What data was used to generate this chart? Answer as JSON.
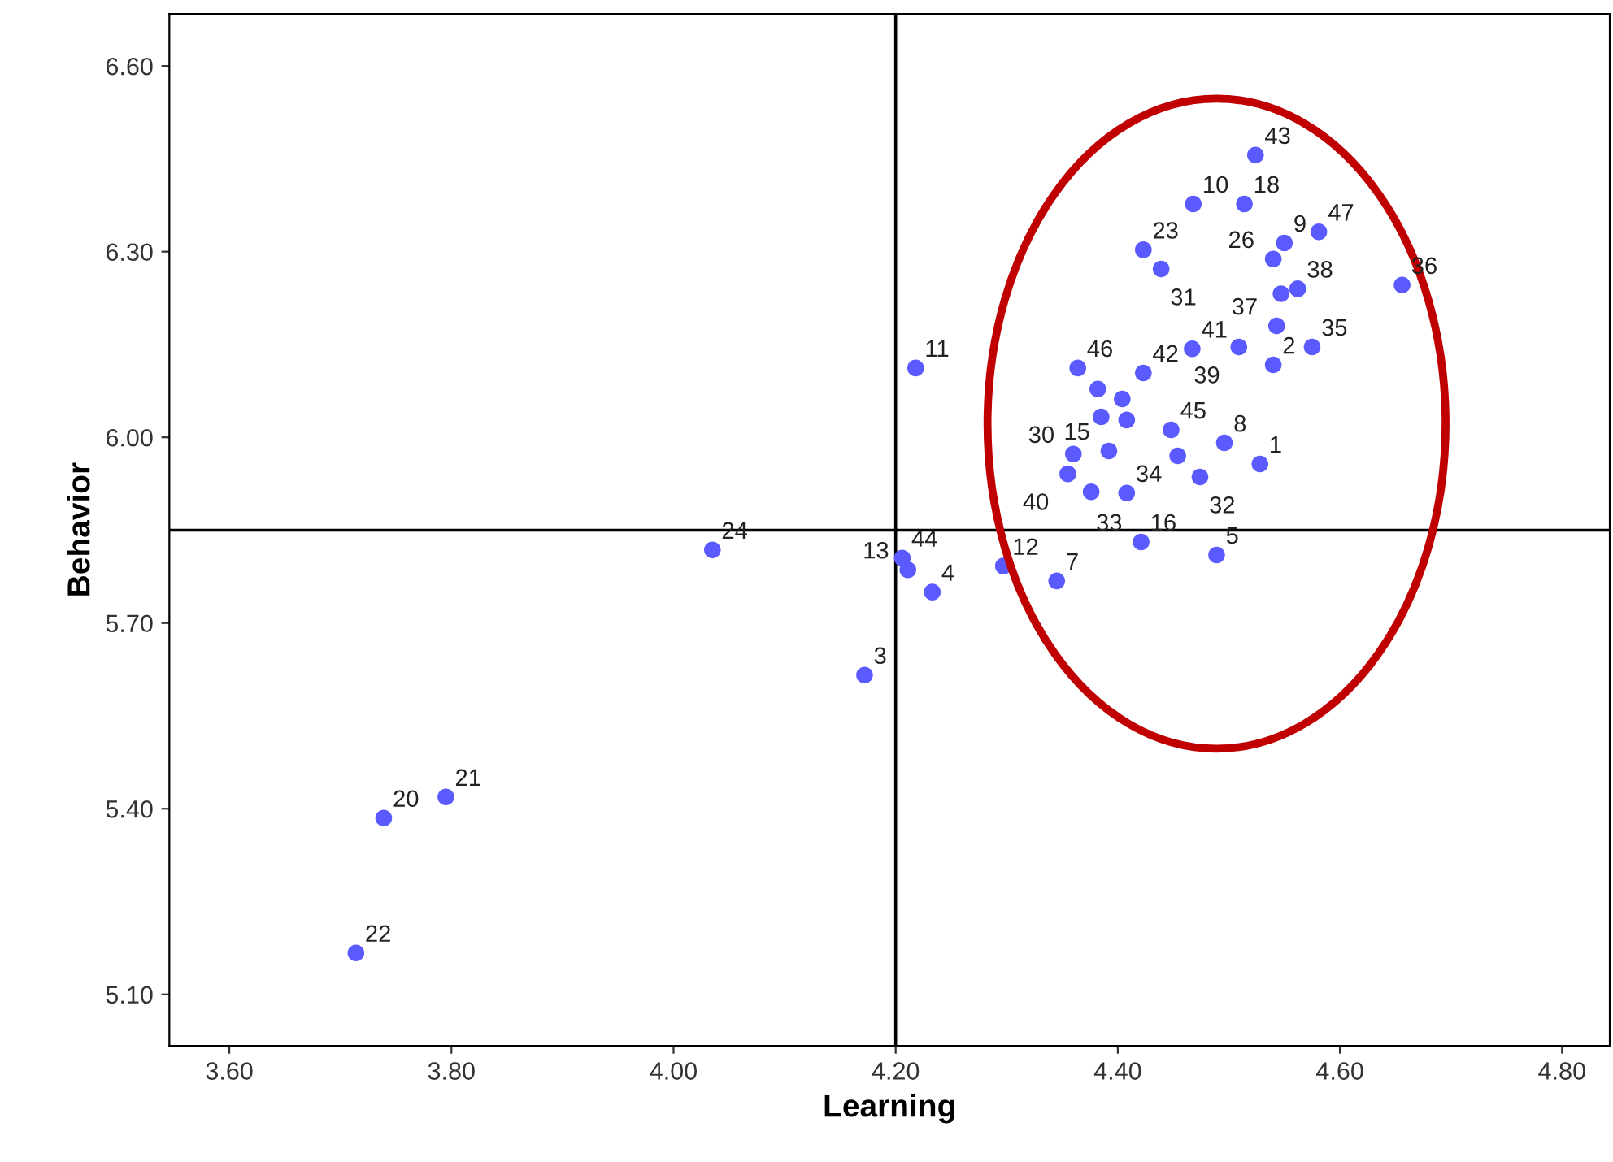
{
  "chart_data": {
    "type": "scatter",
    "xlabel": "Learning",
    "ylabel": "Behavior",
    "xlim": [
      3.546,
      4.843
    ],
    "ylim": [
      5.017,
      6.684
    ],
    "xticks": [
      {
        "value": 3.6,
        "label": "3.60"
      },
      {
        "value": 3.8,
        "label": "3.80"
      },
      {
        "value": 4.0,
        "label": "4.00"
      },
      {
        "value": 4.2,
        "label": "4.20"
      },
      {
        "value": 4.4,
        "label": "4.40"
      },
      {
        "value": 4.6,
        "label": "4.60"
      },
      {
        "value": 4.8,
        "label": "4.80"
      }
    ],
    "yticks": [
      {
        "value": 5.1,
        "label": "5.10"
      },
      {
        "value": 5.4,
        "label": "5.40"
      },
      {
        "value": 5.7,
        "label": "5.70"
      },
      {
        "value": 6.0,
        "label": "6.00"
      },
      {
        "value": 6.3,
        "label": "6.30"
      },
      {
        "value": 6.6,
        "label": "6.60"
      }
    ],
    "grid": false,
    "marker": "circle",
    "ref_lines": [
      {
        "axis": "x",
        "value": 4.2,
        "color": "#000000"
      },
      {
        "axis": "y",
        "value": 5.85,
        "color": "#000000"
      }
    ],
    "series": [
      {
        "color": "#5a5aff",
        "x": [
          4.524,
          4.468,
          4.514,
          4.55,
          4.581,
          4.423,
          4.439,
          4.54,
          4.562,
          4.547,
          4.656,
          4.467,
          4.509,
          4.543,
          4.575,
          4.54,
          4.364,
          4.382,
          4.404,
          4.423,
          4.385,
          4.408,
          4.448,
          4.496,
          4.528,
          4.392,
          4.454,
          4.36,
          4.355,
          4.376,
          4.408,
          4.474,
          4.421,
          4.489,
          4.297,
          4.345,
          4.218,
          4.035,
          4.206,
          4.211,
          4.233,
          4.172,
          3.795,
          3.739,
          3.714
        ],
        "values": [
          6.456,
          6.377,
          6.377,
          6.314,
          6.332,
          6.303,
          6.272,
          6.288,
          6.24,
          6.232,
          6.246,
          6.143,
          6.146,
          6.18,
          6.146,
          6.117,
          6.112,
          6.078,
          6.062,
          6.104,
          6.033,
          6.028,
          6.012,
          5.991,
          5.957,
          5.978,
          5.97,
          5.973,
          5.941,
          5.912,
          5.91,
          5.936,
          5.831,
          5.81,
          5.792,
          5.768,
          6.112,
          5.818,
          5.805,
          5.786,
          5.75,
          5.616,
          5.419,
          5.385,
          5.167
        ]
      }
    ],
    "annotations": [
      {
        "text": "43",
        "x": 4.524,
        "y": 6.456
      },
      {
        "text": "10",
        "x": 4.468,
        "y": 6.377
      },
      {
        "text": "18",
        "x": 4.514,
        "y": 6.377
      },
      {
        "text": "9",
        "x": 4.55,
        "y": 6.314
      },
      {
        "text": "47",
        "x": 4.581,
        "y": 6.332
      },
      {
        "text": "23",
        "x": 4.423,
        "y": 6.303
      },
      {
        "text": "31",
        "x": 4.439,
        "y": 6.272
      },
      {
        "text": "26",
        "x": 4.54,
        "y": 6.288
      },
      {
        "text": "38",
        "x": 4.562,
        "y": 6.24
      },
      {
        "text": "36",
        "x": 4.656,
        "y": 6.246
      },
      {
        "text": "41",
        "x": 4.467,
        "y": 6.143
      },
      {
        "text": "39",
        "x": 4.509,
        "y": 6.146
      },
      {
        "text": "37",
        "x": 4.543,
        "y": 6.18
      },
      {
        "text": "35",
        "x": 4.575,
        "y": 6.146
      },
      {
        "text": "2",
        "x": 4.54,
        "y": 6.117
      },
      {
        "text": "46",
        "x": 4.364,
        "y": 6.112
      },
      {
        "text": "42",
        "x": 4.423,
        "y": 6.104
      },
      {
        "text": "45",
        "x": 4.448,
        "y": 6.012
      },
      {
        "text": "8",
        "x": 4.496,
        "y": 5.991
      },
      {
        "text": "1",
        "x": 4.528,
        "y": 5.957
      },
      {
        "text": "15",
        "x": 4.392,
        "y": 5.978
      },
      {
        "text": "30",
        "x": 4.36,
        "y": 5.973
      },
      {
        "text": "40",
        "x": 4.355,
        "y": 5.941
      },
      {
        "text": "34",
        "x": 4.408,
        "y": 5.91
      },
      {
        "text": "32",
        "x": 4.474,
        "y": 5.936
      },
      {
        "text": "16",
        "x": 4.421,
        "y": 5.831
      },
      {
        "text": "33",
        "x": 4.421,
        "y": 5.831
      },
      {
        "text": "5",
        "x": 4.489,
        "y": 5.81
      },
      {
        "text": "12",
        "x": 4.297,
        "y": 5.792
      },
      {
        "text": "7",
        "x": 4.345,
        "y": 5.768
      },
      {
        "text": "11",
        "x": 4.218,
        "y": 6.112
      },
      {
        "text": "24",
        "x": 4.035,
        "y": 5.818
      },
      {
        "text": "44",
        "x": 4.206,
        "y": 5.805
      },
      {
        "text": "13",
        "x": 4.211,
        "y": 5.786
      },
      {
        "text": "4",
        "x": 4.233,
        "y": 5.75
      },
      {
        "text": "3",
        "x": 4.172,
        "y": 5.616
      },
      {
        "text": "21",
        "x": 3.795,
        "y": 5.419
      },
      {
        "text": "20",
        "x": 3.739,
        "y": 5.385
      },
      {
        "text": "22",
        "x": 3.714,
        "y": 5.167
      }
    ]
  }
}
